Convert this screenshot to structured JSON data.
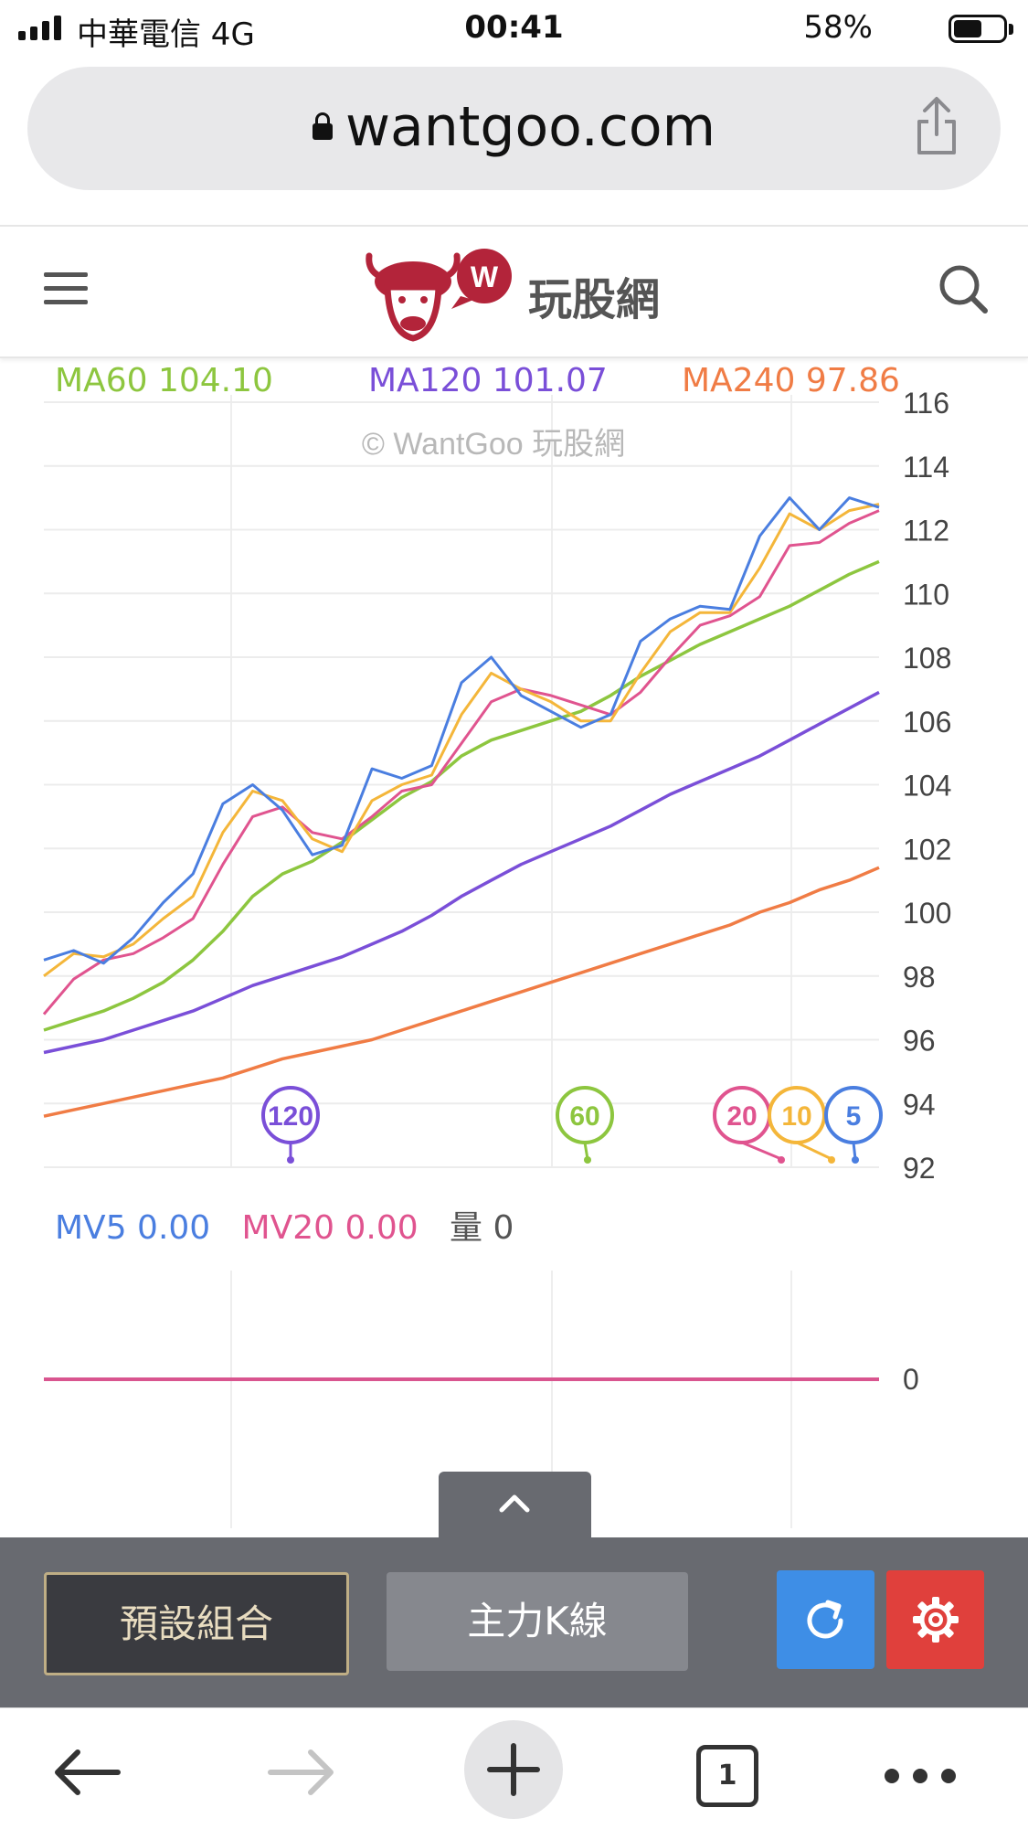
{
  "status_bar": {
    "carrier": "中華電信  4G",
    "time": "00:41",
    "battery_percent": "58%",
    "battery_level": 0.58,
    "signal_bars": 4
  },
  "browser": {
    "url": "wantgoo.com",
    "share_icon": "share-icon",
    "lock_icon": "lock-icon"
  },
  "site_header": {
    "menu_icon": "hamburger-menu-icon",
    "logo_badge": "W",
    "site_name": "玩股網",
    "search_icon": "search-icon"
  },
  "chart": {
    "watermark": "© WantGoo 玩股網",
    "ma_legend": [
      {
        "label": "MA60",
        "value": "104.10",
        "color": "#8dc63f"
      },
      {
        "label": "MA120",
        "value": "101.07",
        "color": "#7a4fd8"
      },
      {
        "label": "MA240",
        "value": "97.86",
        "color": "#f07c45"
      }
    ],
    "y_ticks": [
      "116",
      "114",
      "112",
      "110",
      "108",
      "106",
      "104",
      "102",
      "100",
      "98",
      "96",
      "94",
      "92"
    ],
    "period_markers": [
      {
        "label": "120",
        "color": "#7a4fd8"
      },
      {
        "label": "60",
        "color": "#8dc63f"
      },
      {
        "label": "20",
        "color": "#e0548f"
      },
      {
        "label": "10",
        "color": "#f4b63a"
      },
      {
        "label": "5",
        "color": "#4a7ee0"
      }
    ],
    "volume_legend": {
      "mv5_label": "MV5",
      "mv5_value": "0.00",
      "mv5_color": "#4a7ee0",
      "mv20_label": "MV20",
      "mv20_value": "0.00",
      "mv20_color": "#e0548f",
      "vol_label": "量",
      "vol_value": "0"
    },
    "volume_axis_label": "0"
  },
  "chart_data": {
    "type": "line",
    "ylim": [
      92,
      116
    ],
    "y_ticks": [
      92,
      94,
      96,
      98,
      100,
      102,
      104,
      106,
      108,
      110,
      112,
      114,
      116
    ],
    "series": [
      {
        "name": "MA5",
        "color": "#4a7ee0",
        "values": [
          98.5,
          98.8,
          98.4,
          99.2,
          100.3,
          101.2,
          103.4,
          104.0,
          103.2,
          101.8,
          102.1,
          104.5,
          104.2,
          104.6,
          107.2,
          108.0,
          106.8,
          106.3,
          105.8,
          106.2,
          108.5,
          109.2,
          109.6,
          109.5,
          111.8,
          113.0,
          112.0,
          113.0,
          112.7
        ]
      },
      {
        "name": "MA10",
        "color": "#f4b63a",
        "values": [
          98.0,
          98.7,
          98.6,
          99.0,
          99.8,
          100.5,
          102.5,
          103.8,
          103.5,
          102.3,
          101.9,
          103.5,
          104.0,
          104.3,
          106.2,
          107.5,
          107.0,
          106.6,
          106.0,
          106.0,
          107.5,
          108.8,
          109.4,
          109.4,
          110.8,
          112.5,
          112.0,
          112.6,
          112.8
        ]
      },
      {
        "name": "MA20",
        "color": "#e0548f",
        "values": [
          96.8,
          97.9,
          98.5,
          98.7,
          99.2,
          99.8,
          101.5,
          103.0,
          103.3,
          102.5,
          102.3,
          103.0,
          103.8,
          104.0,
          105.3,
          106.6,
          107.0,
          106.8,
          106.5,
          106.2,
          106.9,
          108.0,
          109.0,
          109.3,
          109.9,
          111.5,
          111.6,
          112.2,
          112.6
        ]
      },
      {
        "name": "MA60",
        "color": "#8dc63f",
        "values": [
          96.3,
          96.6,
          96.9,
          97.3,
          97.8,
          98.5,
          99.4,
          100.5,
          101.2,
          101.6,
          102.2,
          102.9,
          103.6,
          104.1,
          104.9,
          105.4,
          105.7,
          106.0,
          106.3,
          106.8,
          107.4,
          107.9,
          108.4,
          108.8,
          109.2,
          109.6,
          110.1,
          110.6,
          111.0
        ]
      },
      {
        "name": "MA120",
        "color": "#7a4fd8",
        "values": [
          95.6,
          95.8,
          96.0,
          96.3,
          96.6,
          96.9,
          97.3,
          97.7,
          98.0,
          98.3,
          98.6,
          99.0,
          99.4,
          99.9,
          100.5,
          101.0,
          101.5,
          101.9,
          102.3,
          102.7,
          103.2,
          103.7,
          104.1,
          104.5,
          104.9,
          105.4,
          105.9,
          106.4,
          106.9
        ]
      },
      {
        "name": "MA240",
        "color": "#f07c45",
        "values": [
          93.6,
          93.8,
          94.0,
          94.2,
          94.4,
          94.6,
          94.8,
          95.1,
          95.4,
          95.6,
          95.8,
          96.0,
          96.3,
          96.6,
          96.9,
          97.2,
          97.5,
          97.8,
          98.1,
          98.4,
          98.7,
          99.0,
          99.3,
          99.6,
          100.0,
          100.3,
          100.7,
          101.0,
          101.4
        ]
      }
    ],
    "volume": {
      "MV5": [
        0
      ],
      "MV20": [
        0
      ],
      "value": 0
    }
  },
  "toolbar": {
    "collapse_icon": "chevron-up-icon",
    "preset_label": "預設組合",
    "kline_label": "主力K線",
    "refresh_icon": "refresh-icon",
    "settings_icon": "gear-icon"
  },
  "browser_bar": {
    "tab_count": "1"
  }
}
